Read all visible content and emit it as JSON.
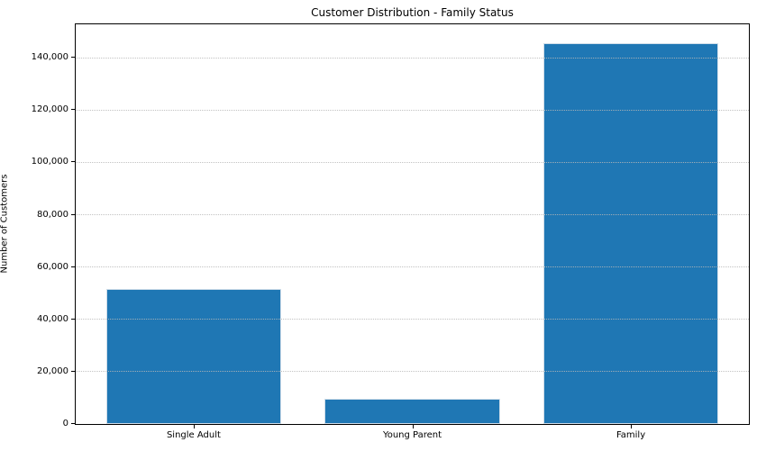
{
  "chart_data": {
    "type": "bar",
    "title": "Customer Distribution - Family Status",
    "xlabel": "",
    "ylabel": "Number of Customers",
    "categories": [
      "Single Adult",
      "Young Parent",
      "Family"
    ],
    "values": [
      51500,
      9700,
      145500
    ],
    "ylim": [
      0,
      152800
    ],
    "yticks": [
      0,
      20000,
      40000,
      60000,
      80000,
      100000,
      120000,
      140000
    ],
    "ytick_labels": [
      "0",
      "20,000",
      "40,000",
      "60,000",
      "80,000",
      "100,000",
      "120,000",
      "140,000"
    ],
    "bar_color": "#1f77b4",
    "bar_edge_color": "#cfdde9",
    "grid": true,
    "grid_style": "dotted",
    "grid_color": "#b8b8b8",
    "legend_position": "none",
    "bar_width_fraction": 0.8
  }
}
